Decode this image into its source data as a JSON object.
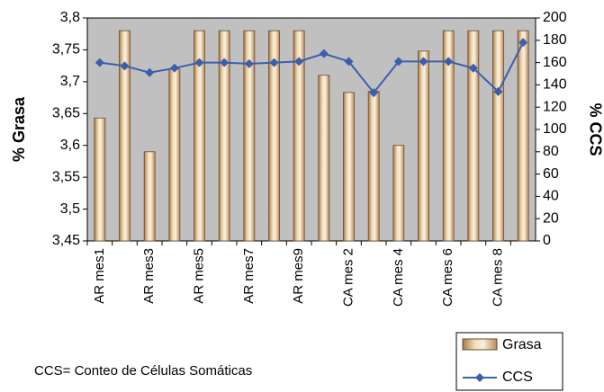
{
  "chart_data": {
    "type": "bar_line",
    "categories": [
      "AR mes1",
      null,
      "AR mes3",
      null,
      "AR mes5",
      null,
      "AR mes7",
      null,
      "AR mes9",
      null,
      "CA mes 2",
      null,
      "CA mes 4",
      null,
      "CA mes 6",
      null,
      "CA mes 8",
      null
    ],
    "series": [
      {
        "name": "Grasa",
        "type": "bar",
        "color": "#e9c79a",
        "values": [
          3.643,
          3.78,
          3.59,
          3.72,
          3.78,
          3.78,
          3.78,
          3.78,
          3.78,
          3.71,
          3.683,
          3.685,
          3.6,
          3.748,
          3.78,
          3.78,
          3.78,
          3.78
        ]
      },
      {
        "name": "CCS",
        "type": "line",
        "axis": "y2",
        "color": "#3a5fae",
        "values": [
          160,
          157,
          151,
          155,
          160,
          160,
          159,
          160,
          161,
          168,
          161,
          133,
          161,
          161,
          161,
          155,
          134,
          178
        ]
      }
    ],
    "y_label": "% Grasa",
    "y2_label": "% CCS",
    "ylim": [
      3.45,
      3.8
    ],
    "yticks": [
      {
        "value": 3.45,
        "label": "3,45"
      },
      {
        "value": 3.5,
        "label": "3,5"
      },
      {
        "value": 3.55,
        "label": "3,55"
      },
      {
        "value": 3.6,
        "label": "3,6"
      },
      {
        "value": 3.65,
        "label": "3,65"
      },
      {
        "value": 3.7,
        "label": "3,7"
      },
      {
        "value": 3.75,
        "label": "3,75"
      },
      {
        "value": 3.8,
        "label": "3,8"
      }
    ],
    "y2lim": [
      0,
      200
    ],
    "y2ticks": [
      0,
      20,
      40,
      60,
      80,
      100,
      120,
      140,
      160,
      180,
      200
    ],
    "annotation": "CCS= Conteo de Células Somáticas",
    "plot_background": "#c0c0c0",
    "legend": "bottom-right"
  }
}
